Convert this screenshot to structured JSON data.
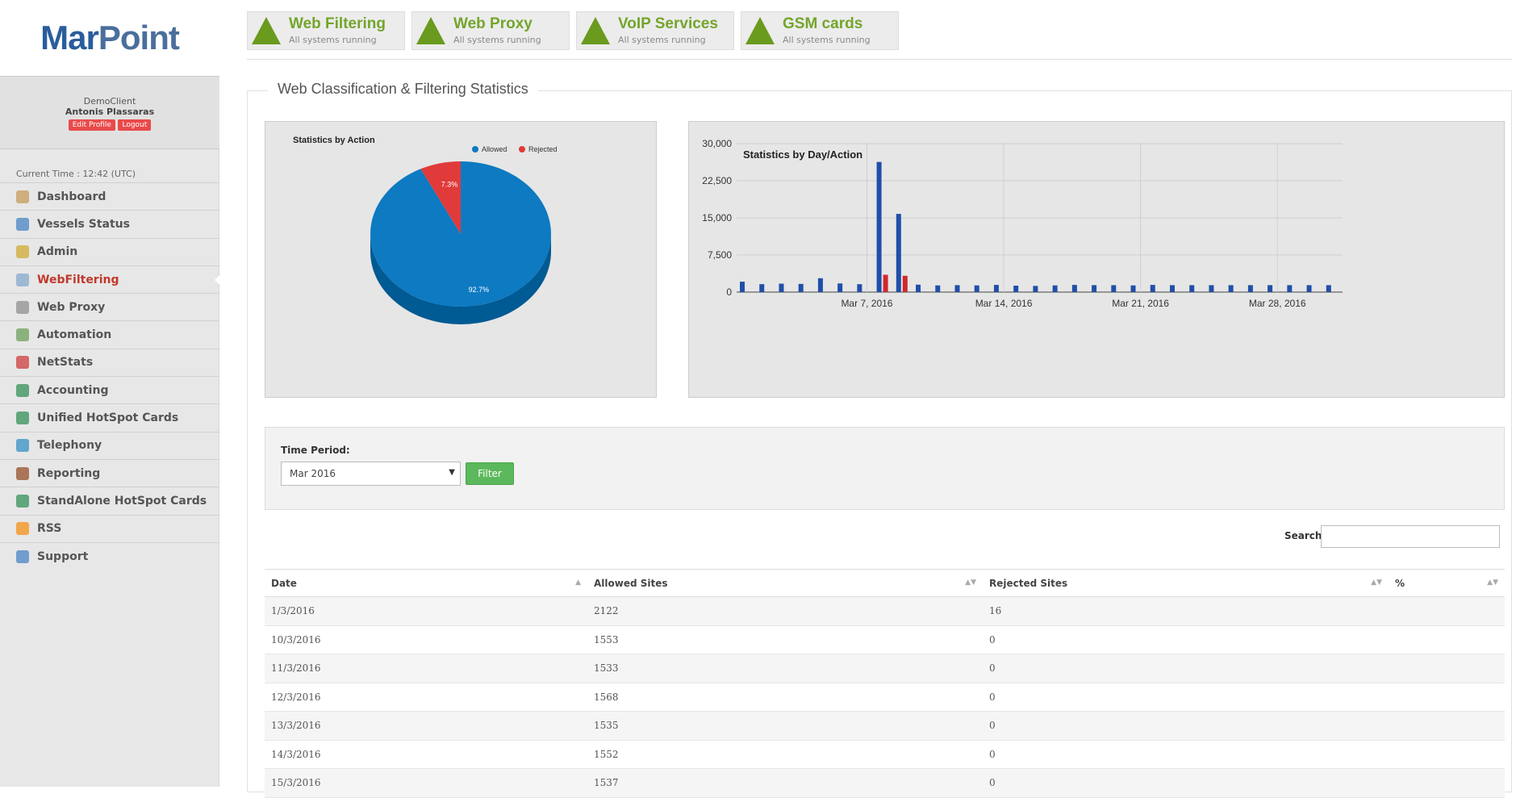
{
  "brand": {
    "logo_a": "Mar",
    "logo_b": "Point"
  },
  "user": {
    "client": "DemoClient",
    "name": "Antonis Plassaras",
    "edit_label": "Edit Profile",
    "logout_label": "Logout"
  },
  "clock": "Current Time : 12:42 (UTC)",
  "menu": [
    {
      "label": "Dashboard",
      "icon": "home-icon",
      "color": "#c9a46a"
    },
    {
      "label": "Vessels Status",
      "icon": "ship-icon",
      "color": "#5a8fc8"
    },
    {
      "label": "Admin",
      "icon": "gear-icon",
      "color": "#d4b04a"
    },
    {
      "label": "WebFiltering",
      "icon": "document-icon",
      "color": "#8fb0d0",
      "active": true
    },
    {
      "label": "Web Proxy",
      "icon": "network-icon",
      "color": "#999999"
    },
    {
      "label": "Automation",
      "icon": "cog-icon",
      "color": "#7aa86a"
    },
    {
      "label": "NetStats",
      "icon": "bar-chart-icon",
      "color": "#d05050"
    },
    {
      "label": "Accounting",
      "icon": "globe-icon",
      "color": "#4a9a6a"
    },
    {
      "label": "Unified HotSpot Cards",
      "icon": "globe-icon",
      "color": "#4a9a6a"
    },
    {
      "label": "Telephony",
      "icon": "globe-icon",
      "color": "#4a9ac8"
    },
    {
      "label": "Reporting",
      "icon": "report-icon",
      "color": "#a06040"
    },
    {
      "label": "StandAlone HotSpot Cards",
      "icon": "globe-icon",
      "color": "#4a9a6a"
    },
    {
      "label": "RSS",
      "icon": "rss-icon",
      "color": "#f29a2e"
    },
    {
      "label": "Support",
      "icon": "support-icon",
      "color": "#5a8fc8"
    }
  ],
  "services": [
    {
      "title": "Web Filtering",
      "status": "All systems running"
    },
    {
      "title": "Web Proxy",
      "status": "All systems running"
    },
    {
      "title": "VoIP Services",
      "status": "All systems running"
    },
    {
      "title": "GSM cards",
      "status": "All systems running"
    }
  ],
  "panel_title": "Web Classification & Filtering Statistics",
  "chart_data": [
    {
      "type": "pie",
      "title": "Statistics by Action",
      "legend": [
        "Allowed",
        "Rejected"
      ],
      "values": [
        92.7,
        7.3
      ],
      "labels": [
        "92.7%",
        "7.3%"
      ],
      "colors": [
        "#0d7ac2",
        "#e03a3a"
      ]
    },
    {
      "type": "bar",
      "title": "Statistics by Day/Action",
      "ylim": [
        0,
        30000
      ],
      "yticks": [
        "0",
        "7,500",
        "15,000",
        "22,500",
        "30,000"
      ],
      "xticks": [
        "Mar 7, 2016",
        "Mar 14, 2016",
        "Mar 21, 2016",
        "Mar 28, 2016"
      ],
      "series": [
        {
          "name": "Allowed",
          "color": "#1f4fa8",
          "values": [
            2100,
            1600,
            1700,
            1650,
            2800,
            1750,
            1600,
            26300,
            15800,
            1500,
            1350,
            1400,
            1350,
            1450,
            1300,
            1250,
            1350,
            1450,
            1400,
            1400,
            1350,
            1450,
            1400,
            1400,
            1400,
            1400,
            1400,
            1400,
            1400,
            1400,
            1400
          ]
        },
        {
          "name": "Rejected",
          "color": "#d0282c",
          "values": [
            0,
            0,
            0,
            0,
            0,
            0,
            0,
            3500,
            3300,
            0,
            0,
            0,
            0,
            0,
            0,
            0,
            0,
            0,
            0,
            0,
            0,
            0,
            0,
            0,
            0,
            0,
            0,
            0,
            0,
            0,
            0
          ]
        }
      ]
    }
  ],
  "filter": {
    "label": "Time Period:",
    "selected": "Mar 2016",
    "button": "Filter"
  },
  "search": {
    "label": "Search:"
  },
  "table": {
    "headers": [
      "Date",
      "Allowed Sites",
      "Rejected Sites",
      "%"
    ],
    "rows": [
      [
        "1/3/2016",
        "2122",
        "16",
        ""
      ],
      [
        "10/3/2016",
        "1553",
        "0",
        ""
      ],
      [
        "11/3/2016",
        "1533",
        "0",
        ""
      ],
      [
        "12/3/2016",
        "1568",
        "0",
        ""
      ],
      [
        "13/3/2016",
        "1535",
        "0",
        ""
      ],
      [
        "14/3/2016",
        "1552",
        "0",
        ""
      ],
      [
        "15/3/2016",
        "1537",
        "0",
        ""
      ]
    ]
  }
}
